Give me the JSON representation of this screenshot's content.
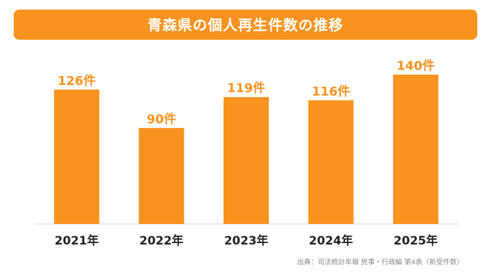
{
  "title": "青森県の個人再生件数の推移",
  "source": "出典：司法統計年報 民事・行政編 第4表（新受件数）",
  "colors": {
    "bar": "#f7931e",
    "label": "#f7931e",
    "axis_text": "#222222",
    "baseline": "#d0d0d0"
  },
  "chart_data": {
    "type": "bar",
    "title": "青森県の個人再生件数の推移",
    "categories": [
      "2021年",
      "2022年",
      "2023年",
      "2024年",
      "2025年"
    ],
    "values": [
      126,
      90,
      119,
      116,
      140
    ],
    "data_labels": [
      "126件",
      "90件",
      "119件",
      "116件",
      "140件"
    ],
    "xlabel": "",
    "ylabel": "",
    "ylim": [
      0,
      140
    ],
    "grid": false,
    "legend": "none"
  }
}
